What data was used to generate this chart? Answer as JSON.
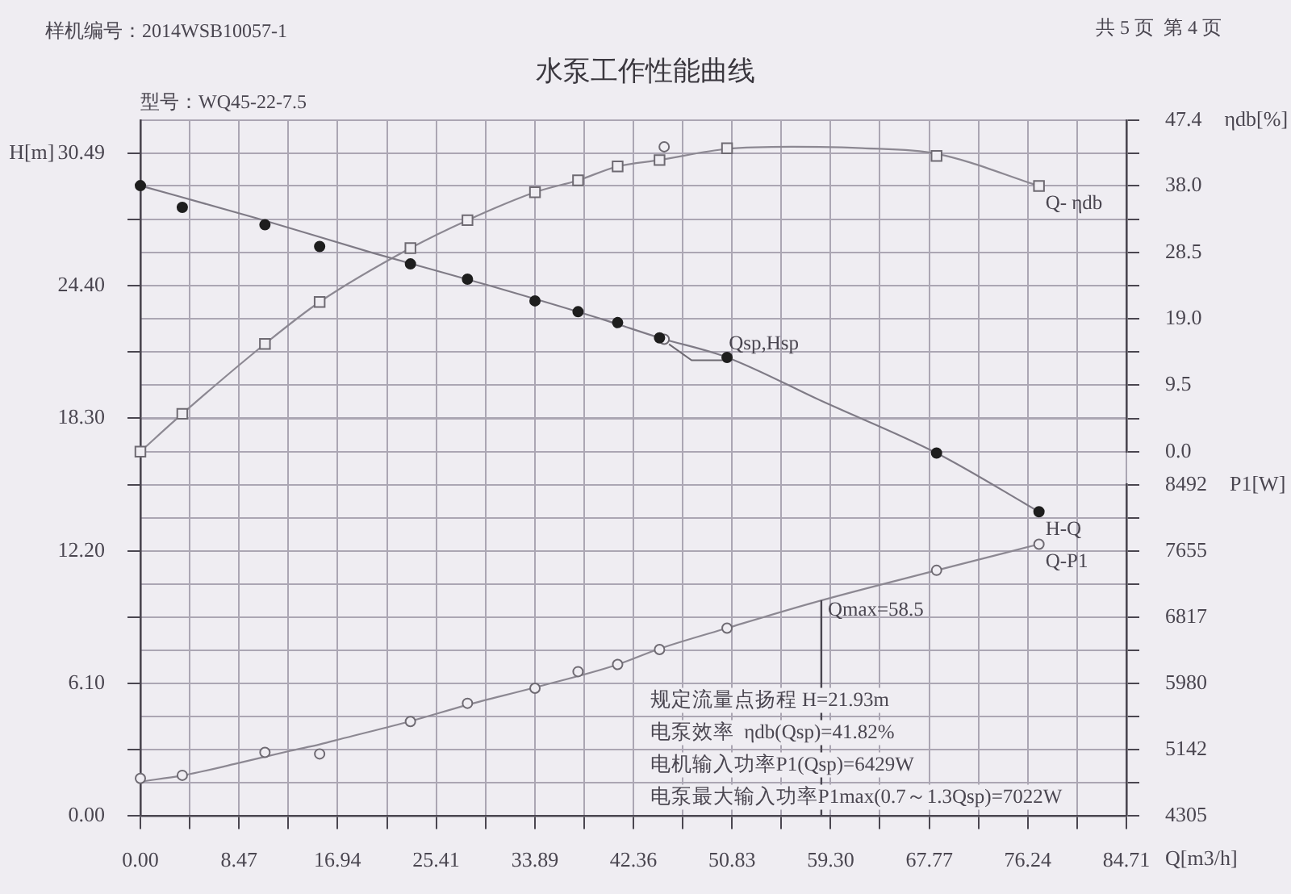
{
  "chart_data": {
    "type": "line",
    "title": "水泵工作性能曲线",
    "subtitle": "型号：WQ45-22-7.5",
    "xlabel": "Q[m3/h]",
    "ylabel": "H[m]",
    "y2label": "ηdb[%]",
    "y3label": "P1[W]",
    "x": [
      0,
      3.6,
      10.7,
      15.4,
      23.2,
      28.1,
      33.9,
      37.6,
      41.0,
      44.6,
      50.4,
      68.4,
      77.2
    ],
    "series": [
      {
        "type": "scatter",
        "color": "#1e1e1e",
        "marker": "circle",
        "values": [
          29.0,
          28.0,
          27.2,
          26.2,
          25.4,
          24.7,
          23.7,
          23.2,
          22.7,
          22.0,
          21.1,
          16.7,
          14.0
        ]
      },
      {
        "type": "scatter",
        "color": "#6e6a72",
        "marker": "square",
        "axis": "y2",
        "values": [
          0.0,
          5.4,
          15.4,
          21.4,
          29.1,
          33.1,
          37.1,
          38.8,
          40.8,
          41.7,
          43.4,
          42.3,
          38.0
        ]
      },
      {
        "type": "scatter",
        "color": "#6e6a72",
        "marker": "circle",
        "axis": "y3",
        "values": [
          4780,
          4820,
          5110,
          5090,
          5500,
          5730,
          5920,
          6130,
          6220,
          6410,
          6680,
          7410,
          7740
        ]
      },
      {
        "name": "H-Q",
        "color": "#7f7b86",
        "x": [
          0,
          10,
          20,
          30,
          40,
          44.6,
          50.4,
          58.5,
          68.4,
          77.2
        ],
        "values": [
          29.0,
          27.5,
          25.9,
          24.4,
          22.8,
          22.0,
          21.1,
          19.1,
          16.7,
          14.0
        ]
      },
      {
        "name": "Q- ηdb",
        "color": "#8c8892",
        "axis": "y2",
        "x": [
          0,
          3.6,
          10.7,
          15.4,
          23.2,
          28.1,
          33.9,
          37.6,
          41.0,
          44.6,
          50.4,
          56,
          62,
          68.4,
          77.2
        ],
        "values": [
          0.0,
          5.4,
          15.4,
          21.4,
          29.1,
          33.1,
          37.1,
          38.8,
          40.8,
          41.7,
          43.3,
          43.6,
          43.4,
          42.6,
          38.0
        ]
      },
      {
        "name": "Q-P1",
        "color": "#8c8892",
        "axis": "y3",
        "x": [
          0,
          3.7,
          8.3,
          12.9,
          15.4,
          17.5,
          23.1,
          28.1,
          33.9,
          41.0,
          44.6,
          50.4,
          58.5,
          68.4,
          77.2
        ],
        "values": [
          4740,
          4820,
          4970,
          5130,
          5210,
          5290,
          5500,
          5710,
          5930,
          6220,
          6420,
          6680,
          7030,
          7410,
          7740
        ]
      },
      {
        "name": "Qsp,Hsp",
        "type": "scatter",
        "color": "#6e6a72",
        "marker": "circle",
        "x": [
          45
        ],
        "values": [
          21.93
        ]
      },
      {
        "type": "scatter",
        "color": "#6e6a72",
        "marker": "circle",
        "axis": "y2",
        "x": [
          45
        ],
        "values": [
          43.6
        ]
      }
    ],
    "xlim": [
      0,
      84.71
    ],
    "xticks": [
      {
        "value": 0,
        "label": "0.00"
      },
      {
        "value": 4.235,
        "label": null
      },
      8.47,
      {
        "value": 12.71,
        "label": null
      },
      16.94,
      {
        "value": 21.18,
        "label": null
      },
      25.41,
      {
        "value": 29.65,
        "label": null
      },
      33.89,
      {
        "value": 38.12,
        "label": null
      },
      42.36,
      {
        "value": 46.59,
        "label": null
      },
      50.83,
      {
        "value": 55.06,
        "label": null
      },
      {
        "value": 59.3,
        "label": "59.30"
      },
      {
        "value": 63.53,
        "label": null
      },
      67.77,
      {
        "value": 72.0,
        "label": null
      },
      76.24,
      {
        "value": 80.47,
        "label": null
      },
      84.71
    ],
    "ylim": [
      0,
      32.01
    ],
    "yticks": [
      {
        "value": 0,
        "label": "0.00"
      },
      {
        "value": 3.05,
        "label": null
      },
      {
        "value": 6.1,
        "label": "6.10"
      },
      {
        "value": 9.15,
        "label": null
      },
      {
        "value": 12.2,
        "label": "12.20"
      },
      {
        "value": 15.25,
        "label": null
      },
      {
        "value": 18.3,
        "label": "18.30"
      },
      {
        "value": 21.35,
        "label": null
      },
      {
        "value": 24.4,
        "label": "24.40"
      },
      {
        "value": 27.44,
        "label": null
      },
      30.49
    ],
    "y2lim": [
      0,
      47.4
    ],
    "y2ticks": [
      {
        "value": 0,
        "label": "0.0"
      },
      {
        "value": 4.75,
        "label": null
      },
      9.5,
      {
        "value": 14.25,
        "label": null
      },
      {
        "value": 19,
        "label": "19.0"
      },
      {
        "value": 23.75,
        "label": null
      },
      28.5,
      {
        "value": 33.25,
        "label": null
      },
      {
        "value": 38,
        "label": "38.0"
      },
      {
        "value": 42.7,
        "label": null
      },
      47.4
    ],
    "y3lim": [
      4305,
      8492
    ],
    "y3ticks": [
      4305,
      {
        "value": 4723.5,
        "label": null
      },
      5142,
      {
        "value": 5561,
        "label": null
      },
      5980,
      {
        "value": 6398.5,
        "label": null
      },
      6817,
      {
        "value": 7236,
        "label": null
      },
      7655,
      {
        "value": 8073.5,
        "label": null
      },
      8492
    ],
    "ref_lines": [
      {
        "axis": "x",
        "value": 58.5,
        "label": "Qmax=58.5"
      }
    ],
    "annotations": [
      "样机编号：2014WSB10057-1",
      "共 5 页  第 4 页",
      "规定流量点扬程 H=21.93m",
      "电泵效率  ηdb(Qsp)=41.82%",
      "电机输入功率P1(Qsp)=6429W",
      "电泵最大输入功率P1max(0.7～1.3Qsp)=7022W"
    ],
    "grid": true
  }
}
